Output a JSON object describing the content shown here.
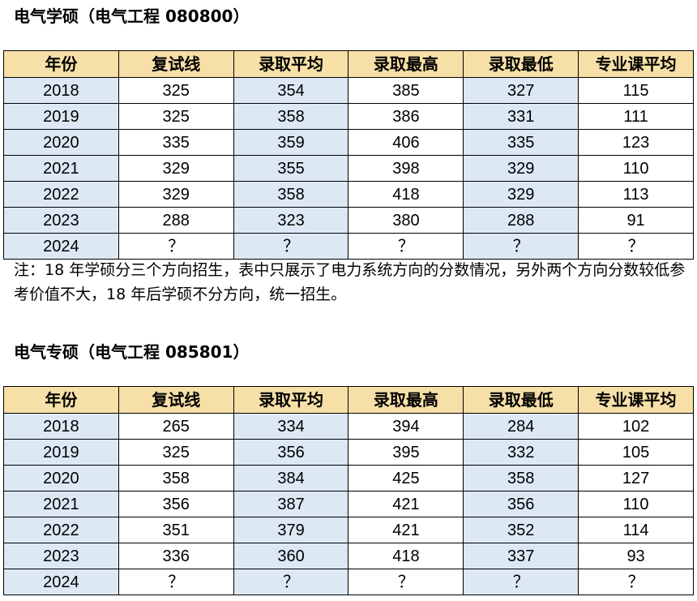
{
  "headers": [
    "年份",
    "复试线",
    "录取平均",
    "录取最高",
    "录取最低",
    "专业课平均"
  ],
  "colors": {
    "header_bg": "#f7e0a7",
    "shaded_col_bg": "#dde8f5",
    "border": "#000000"
  },
  "academic": {
    "title": "电气学硕（电气工程 080800）",
    "rows": [
      [
        "2018",
        "325",
        "354",
        "385",
        "327",
        "115"
      ],
      [
        "2019",
        "325",
        "358",
        "386",
        "331",
        "111"
      ],
      [
        "2020",
        "335",
        "359",
        "406",
        "335",
        "123"
      ],
      [
        "2021",
        "329",
        "355",
        "398",
        "329",
        "110"
      ],
      [
        "2022",
        "329",
        "358",
        "418",
        "329",
        "113"
      ],
      [
        "2023",
        "288",
        "323",
        "380",
        "288",
        "91"
      ],
      [
        "2024",
        "？",
        "？",
        "？",
        "？",
        "？"
      ]
    ],
    "note": "注：18 年学硕分三个方向招生，表中只展示了电力系统方向的分数情况，另外两个方向分数较低参考价值不大，18 年后学硕不分方向，统一招生。"
  },
  "professional": {
    "title": "电气专硕（电气工程 085801）",
    "rows": [
      [
        "2018",
        "265",
        "334",
        "394",
        "284",
        "102"
      ],
      [
        "2019",
        "325",
        "356",
        "395",
        "332",
        "105"
      ],
      [
        "2020",
        "358",
        "384",
        "425",
        "358",
        "127"
      ],
      [
        "2021",
        "356",
        "387",
        "421",
        "356",
        "110"
      ],
      [
        "2022",
        "351",
        "379",
        "421",
        "352",
        "114"
      ],
      [
        "2023",
        "336",
        "360",
        "418",
        "337",
        "93"
      ],
      [
        "2024",
        "？",
        "？",
        "？",
        "？",
        "？"
      ]
    ]
  }
}
